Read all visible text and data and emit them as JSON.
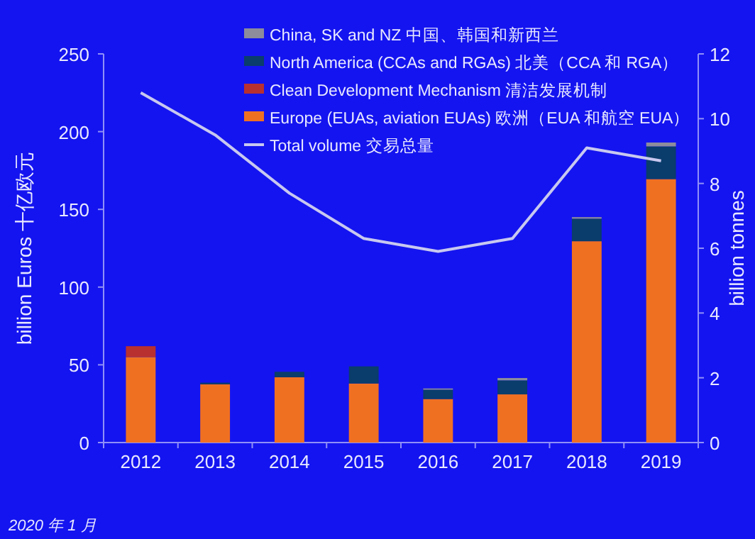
{
  "chart_data": {
    "type": "bar",
    "stacked": true,
    "categories": [
      "2012",
      "2013",
      "2014",
      "2015",
      "2016",
      "2017",
      "2018",
      "2019"
    ],
    "series": [
      {
        "name": "Europe (EUAs, aviation EUAs) 欧洲（EUA 和航空 EUA）",
        "color": "#f07022",
        "values": [
          55,
          37.5,
          42,
          38,
          28,
          31,
          129.5,
          169.5
        ]
      },
      {
        "name": "Clean Development Mechanism 清洁发展机制",
        "color": "#b83030",
        "values": [
          7,
          null,
          null,
          null,
          null,
          null,
          null,
          null
        ]
      },
      {
        "name": "North America (CCAs and RGAs) 北美（CCA 和 RGA）",
        "color": "#0a3d6b",
        "values": [
          null,
          1,
          3.5,
          11,
          6,
          9,
          14.5,
          21
        ]
      },
      {
        "name": "China, SK and NZ  中国、韩国和新西兰",
        "color": "#8c8c9c",
        "values": [
          null,
          null,
          null,
          null,
          0.8,
          1.5,
          1,
          2.5
        ]
      },
      {
        "name": "Total volume 交易总量",
        "type": "line",
        "axis": "y2",
        "color": "#c8c8f0",
        "values": [
          10.8,
          9.5,
          7.7,
          6.3,
          5.9,
          6.3,
          9.1,
          8.7
        ]
      }
    ],
    "ylabel": "billion Euros  十亿欧元",
    "y2label": "billion tonnes",
    "ylim": [
      0,
      250
    ],
    "yticks": [
      0,
      50,
      100,
      150,
      200,
      250
    ],
    "y2lim": [
      0,
      12
    ],
    "y2ticks": [
      0,
      2,
      4,
      6,
      8,
      10,
      12
    ],
    "legend": "top",
    "grid": false,
    "annotations": [
      "2020 年 1 月"
    ]
  }
}
